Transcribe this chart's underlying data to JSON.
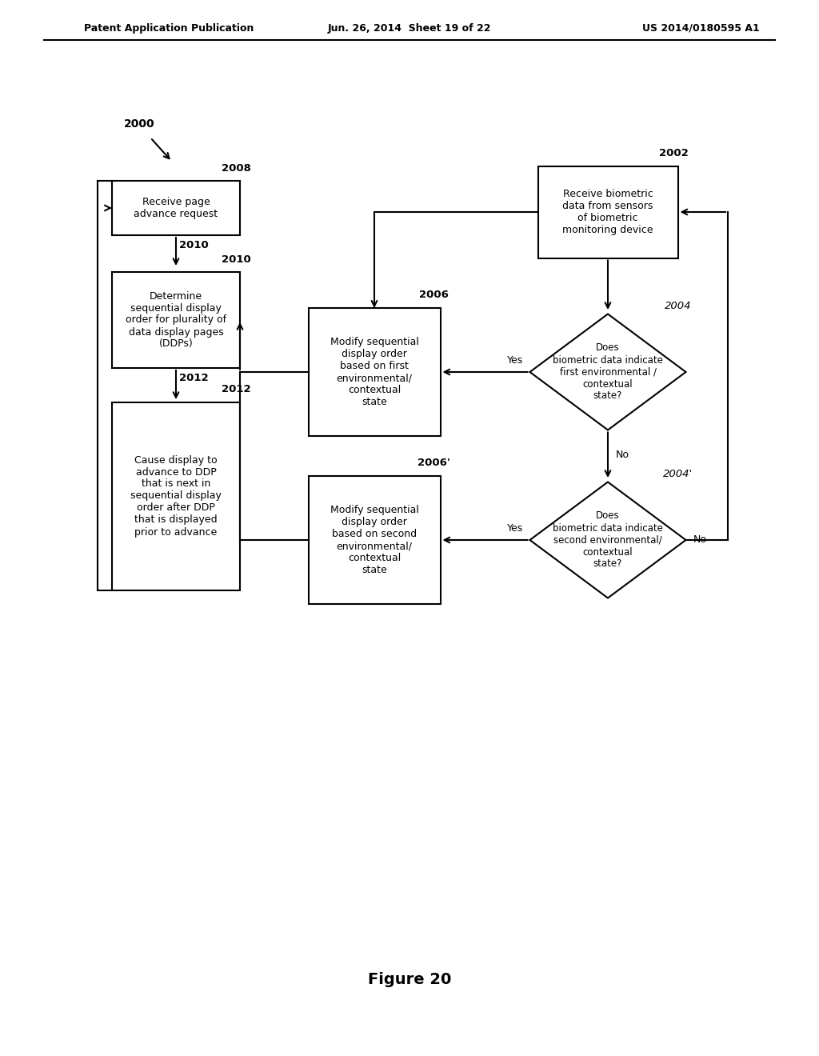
{
  "bg_color": "#ffffff",
  "header_left": "Patent Application Publication",
  "header_mid": "Jun. 26, 2014  Sheet 19 of 22",
  "header_right": "US 2014/0180595 A1",
  "figure_label": "Figure 20",
  "start_label": "2000",
  "label_2008": "2008",
  "label_2010": "2010",
  "label_2012": "2012",
  "label_2002": "2002",
  "label_2004": "2004",
  "label_2006": "2006",
  "label_2004p": "2004'",
  "label_2006p": "2006'",
  "text_2008": "Receive page\nadvance request",
  "text_2010": "Determine\nsequential display\norder for plurality of\ndata display pages\n(DDPs)",
  "text_2012": "Cause display to\nadvance to DDP\nthat is next in\nsequential display\norder after DDP\nthat is displayed\nprior to advance",
  "text_2002": "Receive biometric\ndata from sensors\nof biometric\nmonitoring device",
  "text_2004": "Does\nbiometric data indicate\nfirst environmental /\ncontextual\nstate?",
  "text_2006": "Modify sequential\ndisplay order\nbased on first\nenvironmental/\ncontextual\nstate",
  "text_2004p": "Does\nbiometric data indicate\nsecond environmental/\ncontextual\nstate?",
  "text_2006p": "Modify sequential\ndisplay order\nbased on second\nenvironmental/\ncontextual\nstate"
}
